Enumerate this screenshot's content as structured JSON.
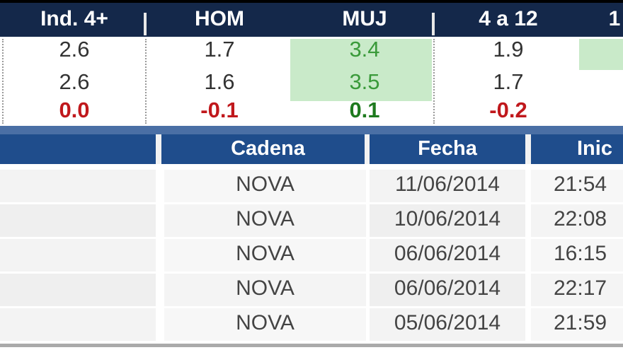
{
  "top_table": {
    "headers": [
      "Ind. 4+",
      "HOM",
      "MUJ",
      "4 a 12",
      "1"
    ],
    "rows": [
      [
        "2.6",
        "1.7",
        "3.4",
        "1.9"
      ],
      [
        "2.6",
        "1.6",
        "3.5",
        "1.7"
      ],
      [
        "0.0",
        "-0.1",
        "0.1",
        "-0.2"
      ]
    ],
    "colors": {
      "header_bg": "#14284a",
      "highlight_bg": "#c9eac9",
      "negative": "#c0181c",
      "positive": "#1e7a1e"
    }
  },
  "bottom_table": {
    "headers": [
      "",
      "Cadena",
      "Fecha",
      "Inic"
    ],
    "rows": [
      [
        "",
        "NOVA",
        "11/06/2014",
        "21:54"
      ],
      [
        "",
        "NOVA",
        "10/06/2014",
        "22:08"
      ],
      [
        "",
        "NOVA",
        "06/06/2014",
        "16:15"
      ],
      [
        "",
        "NOVA",
        "06/06/2014",
        "22:17"
      ],
      [
        "",
        "NOVA",
        "05/06/2014",
        "21:59"
      ]
    ],
    "colors": {
      "header_bg": "#1f4d8c",
      "band": "#4a6fa5"
    }
  }
}
